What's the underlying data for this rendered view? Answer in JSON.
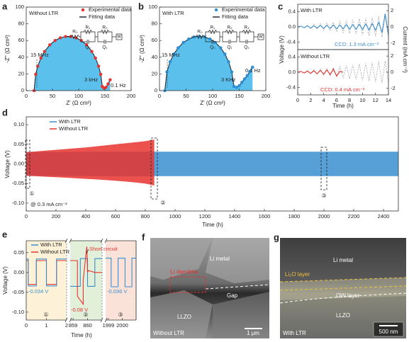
{
  "chart_data": [
    {
      "type": "scatter",
      "label": "a",
      "annotations": [
        "Without LTR",
        "15 MHz",
        "3 kHz",
        "0.1 Hz"
      ],
      "circuit": {
        "series": "R₀",
        "tops": [
          "R₁",
          "R₂"
        ],
        "bottoms": [
          "Q₂",
          "Q₁"
        ],
        "end": "W"
      },
      "xlabel": "Z' (Ω cm²)",
      "ylabel": "-Z'' (Ω cm²)",
      "xlim": [
        0,
        200
      ],
      "xticks": [
        0,
        50,
        100,
        150,
        200
      ],
      "ylim": [
        0,
        100
      ],
      "yticks": [
        0,
        20,
        40,
        60,
        80,
        100
      ],
      "series": [
        {
          "name": "Experimental data",
          "color": "#e8322e",
          "style": "markers",
          "x": [
            15,
            18,
            22,
            28,
            35,
            45,
            55,
            65,
            75,
            85,
            95,
            105,
            115,
            125,
            132,
            138,
            142,
            145,
            148,
            152,
            156,
            160
          ],
          "values": [
            0,
            19.5,
            29.3,
            39,
            46.9,
            54.8,
            60,
            63.2,
            64.8,
            64.8,
            63.2,
            60,
            54.8,
            46.9,
            39,
            29.3,
            19.5,
            5,
            3,
            4,
            8,
            13
          ]
        },
        {
          "name": "Fitting data",
          "color": "#1f2d3d",
          "style": "line",
          "fill": "#5bc0eb",
          "x": [
            15,
            18,
            22,
            28,
            35,
            45,
            55,
            65,
            75,
            85,
            95,
            105,
            115,
            125,
            132,
            138,
            142,
            145,
            148,
            152,
            156,
            160
          ],
          "values": [
            0,
            19.5,
            29.3,
            39,
            46.9,
            54.8,
            60,
            63.2,
            64.8,
            64.8,
            63.2,
            60,
            54.8,
            46.9,
            39,
            29.3,
            19.5,
            5,
            3,
            4,
            8,
            13
          ]
        }
      ]
    },
    {
      "type": "scatter",
      "label": "b",
      "annotations": [
        "With LTR",
        "15 MHz",
        "3 KHz",
        "0.1 Hz"
      ],
      "circuit": {
        "series": "R₀",
        "tops": [
          "R₁",
          "R₂",
          "R₃"
        ],
        "bottoms": [
          "Q₀",
          "Q₁",
          "Q₂"
        ],
        "end": "W"
      },
      "xlabel": "Z' (Ω cm²)",
      "ylabel": "-Z'' (Ω cm²)",
      "xlim": [
        0,
        200
      ],
      "xticks": [
        0,
        50,
        100,
        150,
        200
      ],
      "ylim": [
        0,
        100
      ],
      "yticks": [
        0,
        20,
        40,
        60,
        80,
        100
      ],
      "series": [
        {
          "name": "Experimental data",
          "color": "#2a8fd6",
          "style": "markers",
          "x": [
            10,
            14,
            20,
            27,
            35,
            45,
            55,
            65,
            75,
            85,
            95,
            105,
            115,
            123,
            130,
            136,
            140,
            145,
            150,
            155,
            160,
            165,
            170,
            175
          ],
          "values": [
            0,
            22.4,
            34.6,
            43.8,
            51.2,
            57.7,
            61.8,
            64.2,
            65,
            64.2,
            61.8,
            57.7,
            51.2,
            43.8,
            34.6,
            22.4,
            5,
            4,
            6,
            10,
            14,
            18,
            23,
            28
          ]
        },
        {
          "name": "Fitting data",
          "color": "#1f2d3d",
          "style": "line",
          "fill": "#5bc0eb",
          "x": [
            10,
            14,
            20,
            27,
            35,
            45,
            55,
            65,
            75,
            85,
            95,
            105,
            115,
            123,
            130,
            136,
            140,
            145,
            150,
            155,
            160,
            165,
            170,
            175
          ],
          "values": [
            0,
            22.4,
            34.6,
            43.8,
            51.2,
            57.7,
            61.8,
            64.2,
            65,
            64.2,
            61.8,
            57.7,
            51.2,
            43.8,
            34.6,
            22.4,
            5,
            4,
            6,
            10,
            14,
            18,
            23,
            28
          ]
        }
      ]
    },
    {
      "type": "line",
      "label": "c",
      "annotations": [
        "With LTR",
        "CCD: 1.3 mA cm⁻²"
      ],
      "ylabel": "Voltage (V)",
      "y2label": "Current (mA cm⁻²)",
      "xlim": [
        0,
        14
      ],
      "ylim": [
        -0.6,
        0.6
      ],
      "yticks": [
        -0.4,
        {
          "value": 0,
          "label": "0.0"
        },
        0.4
      ],
      "y2lim": [
        -2.8,
        2.8
      ],
      "y2ticks": [
        -2,
        0,
        2
      ],
      "series": [
        {
          "color": "#9a9a9a",
          "style": "dashed",
          "axis": "y2",
          "x": [
            0,
            0.5,
            1,
            1.5,
            2,
            2.5,
            3,
            3.5,
            4,
            4.5,
            5,
            5.5,
            6,
            6.5,
            7,
            7.5,
            8,
            8.5,
            9,
            9.5,
            10,
            10.5,
            11,
            11.5,
            12,
            12.5,
            13,
            13.5,
            14
          ],
          "values": [
            0,
            0.1,
            -0.1,
            0.2,
            -0.2,
            0.3,
            -0.3,
            0.4,
            -0.4,
            0.5,
            -0.5,
            0.6,
            -0.6,
            0.7,
            -0.7,
            0.8,
            -0.8,
            0.9,
            -0.9,
            1.0,
            -1.0,
            1.1,
            -1.1,
            1.2,
            -1.2,
            1.3,
            -1.3,
            1.4,
            -1.4
          ]
        },
        {
          "color": "#3a8fd0",
          "style": "line",
          "x": [
            0,
            0.5,
            1,
            1.5,
            2,
            2.5,
            3,
            3.5,
            4,
            4.5,
            5,
            5.5,
            6,
            6.5,
            7,
            7.5,
            8,
            8.5,
            9,
            9.5,
            10,
            10.5,
            11,
            11.5,
            12,
            12.5,
            13,
            13.5,
            14
          ],
          "values": [
            0,
            0.02,
            -0.02,
            0.03,
            -0.03,
            0.03,
            -0.03,
            0.04,
            -0.04,
            0.04,
            -0.04,
            0.05,
            -0.05,
            0.05,
            -0.05,
            0.06,
            -0.06,
            0.06,
            -0.06,
            0.07,
            -0.07,
            0.08,
            -0.08,
            0.09,
            -0.09,
            0.12,
            -0.15,
            0.35,
            -0.2
          ]
        }
      ]
    },
    {
      "type": "line",
      "annotations": [
        "Without LTR",
        "CCD: 0.4 mA cm⁻²"
      ],
      "xlabel": "Time (h)",
      "xlim": [
        0,
        14
      ],
      "xticks": [
        0,
        2,
        4,
        6,
        8,
        10,
        12,
        14
      ],
      "ylim": [
        -0.6,
        0.6
      ],
      "yticks": [
        -0.4,
        {
          "value": 0,
          "label": "0.0"
        },
        0.4
      ],
      "y2lim": [
        -2.8,
        2.8
      ],
      "y2ticks": [
        -2,
        0,
        2
      ],
      "series": [
        {
          "color": "#9a9a9a",
          "style": "dashed",
          "axis": "y2",
          "x": [
            0,
            0.5,
            1,
            1.5,
            2,
            2.5,
            3,
            3.5,
            4,
            4.5,
            5,
            5.5,
            6,
            6.5,
            7,
            7.5,
            8,
            8.5,
            9,
            9.5,
            10,
            10.5,
            11,
            11.5,
            12,
            12.5,
            13,
            13.5,
            14
          ],
          "values": [
            0,
            0.1,
            -0.1,
            0.2,
            -0.2,
            0.3,
            -0.3,
            0.4,
            -0.4,
            0.5,
            -0.5,
            0.6,
            -0.6,
            0.7,
            -0.7,
            0.8,
            -0.8,
            0.9,
            -0.9,
            1.0,
            -1.0,
            1.1,
            -1.1,
            1.2,
            -1.2,
            1.3,
            -1.3,
            1.4,
            -1.4
          ]
        },
        {
          "color": "#e8322e",
          "style": "line",
          "x": [
            0,
            0.5,
            1,
            1.5,
            2,
            2.5,
            3,
            3.5,
            4,
            4.5,
            5,
            5.5,
            6,
            6.5,
            7
          ],
          "values": [
            0,
            0.02,
            -0.02,
            0.03,
            -0.03,
            0.04,
            -0.04,
            0.05,
            -0.05,
            0.06,
            -0.06,
            0.08,
            -0.1,
            0.02,
            0
          ]
        }
      ]
    },
    {
      "type": "band",
      "label": "d",
      "annotations": [
        "①",
        "②",
        "③",
        "@ 0.3 mA cm⁻²"
      ],
      "xlabel": "Time (h)",
      "ylabel": "Voltage (V)",
      "xlim": [
        0,
        2500
      ],
      "xticks": [
        0,
        200,
        400,
        600,
        800,
        1000,
        1200,
        1400,
        1600,
        1800,
        2000,
        2200,
        2400
      ],
      "ylim": [
        -0.12,
        0.12
      ],
      "yticks": [
        {
          "value": -0.1,
          "label": "-0.10"
        },
        {
          "value": -0.05,
          "label": "-0.05"
        },
        {
          "value": 0,
          "label": "0.00"
        },
        {
          "value": 0.05,
          "label": "0.05"
        },
        {
          "value": 0.1,
          "label": "0.10"
        }
      ],
      "series": [
        {
          "name": "With LTR",
          "color": "#3a8fd0",
          "x": [
            0,
            500,
            1000,
            1500,
            2000,
            2500
          ],
          "values": [
            0.03,
            0.031,
            0.031,
            0.031,
            0.031,
            0.031
          ],
          "lower": [
            -0.03,
            -0.031,
            -0.031,
            -0.031,
            -0.031,
            -0.031
          ]
        },
        {
          "name": "Without LTR",
          "color": "#e8322e",
          "x": [
            0,
            100,
            200,
            300,
            400,
            500,
            600,
            700,
            800,
            860
          ],
          "values": [
            0.03,
            0.033,
            0.036,
            0.039,
            0.042,
            0.046,
            0.05,
            0.054,
            0.058,
            0.062
          ],
          "lower": [
            -0.03,
            -0.032,
            -0.034,
            -0.036,
            -0.038,
            -0.04,
            -0.043,
            -0.046,
            -0.05,
            -0.055
          ]
        }
      ]
    },
    {
      "type": "line",
      "label": "e",
      "annotations": [
        "Short circuit",
        "-0.034 V",
        "-0.08 V",
        "-0.036 V",
        "①",
        "②",
        "③"
      ],
      "xlabel": "Time (h)",
      "ylabel": "Voltage (V)",
      "ylim": [
        -0.12,
        0.08
      ],
      "yticks": [
        {
          "value": -0.1,
          "label": "-0.10"
        },
        {
          "value": -0.05,
          "label": "-0.05"
        },
        {
          "value": 0,
          "label": "0.00"
        },
        {
          "value": 0.05,
          "label": "0.05"
        }
      ],
      "series": [
        {
          "name": "With LTR",
          "color": "#3a8fd0"
        },
        {
          "name": "Without LTR",
          "color": "#e8322e"
        }
      ],
      "segments": [
        {
          "xlim": [
            0,
            2
          ],
          "xticks": [
            0,
            1,
            2
          ],
          "background": "#fdf1d8",
          "lines": [
            {
              "series": 1,
              "x": [
                0,
                0.1,
                0.1,
                0.5,
                0.5,
                1.0,
                1.0,
                1.5,
                1.5,
                2.0
              ],
              "values": [
                0.03,
                0.03,
                -0.03,
                -0.03,
                0.03,
                0.03,
                -0.03,
                -0.03,
                0.03,
                0.03
              ]
            },
            {
              "series": 0,
              "x": [
                0,
                0.1,
                0.1,
                0.5,
                0.5,
                1.0,
                1.0,
                1.5,
                1.5,
                2.0
              ],
              "values": [
                0.034,
                0.034,
                -0.034,
                -0.034,
                0.034,
                0.034,
                -0.034,
                -0.034,
                0.034,
                0.034
              ]
            }
          ]
        },
        {
          "xlim": [
            858.8,
            861
          ],
          "xticks": [
            859,
            860
          ],
          "background": "#e2f0da",
          "lines": [
            {
              "series": 0,
              "x": [
                858.8,
                859.5,
                859.5,
                860,
                860,
                860.5,
                860.5,
                861
              ],
              "values": [
                -0.035,
                -0.035,
                0.035,
                0.035,
                -0.035,
                -0.035,
                0.035,
                0.035
              ]
            },
            {
              "series": 1,
              "x": [
                858.8,
                859.3,
                859.3,
                859.7,
                859.7,
                859.9,
                859.95,
                860.0,
                860.05,
                860.5,
                861
              ],
              "values": [
                0.03,
                0.03,
                -0.06,
                -0.08,
                -0.02,
                0.05,
                0.065,
                0,
                0.005,
                0,
                0
              ]
            }
          ]
        },
        {
          "xlim": [
            1998.8,
            2001
          ],
          "xticks": [
            1999,
            2000
          ],
          "background": "#fbe2d8",
          "lines": [
            {
              "series": 0,
              "x": [
                1998.8,
                1999.2,
                1999.2,
                1999.7,
                1999.7,
                2000.2,
                2000.2,
                2000.7,
                2000.7,
                2001
              ],
              "values": [
                0.036,
                0.036,
                -0.036,
                -0.036,
                0.036,
                0.036,
                -0.036,
                -0.036,
                0.036,
                0.036
              ]
            }
          ]
        }
      ]
    }
  ],
  "images": [
    {
      "label": "f",
      "texts": [
        "Li metal",
        "Li dendrite",
        "Gap",
        "LLZO",
        "Without LTR",
        "1 μm"
      ]
    },
    {
      "label": "g",
      "texts": [
        "Li metal",
        "Li₂O layer",
        "OW layer",
        "LLZO",
        "With LTR",
        "500 nm"
      ]
    }
  ]
}
